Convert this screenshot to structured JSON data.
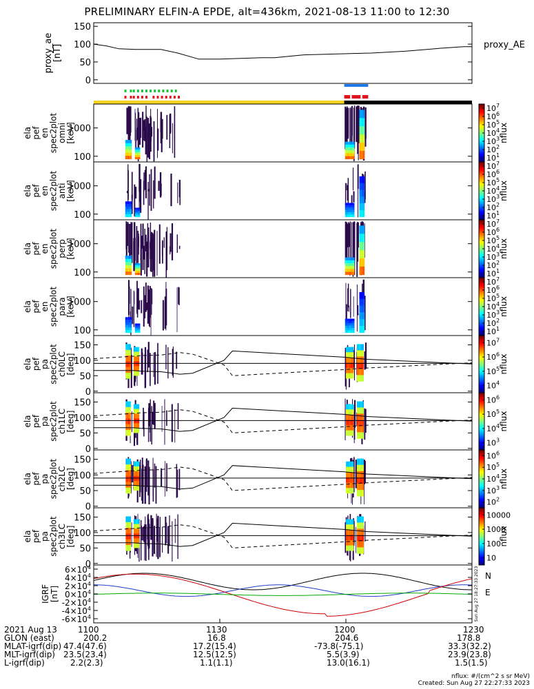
{
  "title": "PRELIMINARY ELFIN-A EPDE, alt=436km, 2021-08-13 11:00 to 12:30",
  "chart_data": [
    {
      "type": "line",
      "ylabel_lines": [
        "proxy_ae",
        "[nT]"
      ],
      "yticks": [
        "0",
        "50",
        "100",
        "150"
      ],
      "ylim": [
        -10,
        160
      ],
      "legend": "proxy_AE",
      "series": [
        {
          "name": "proxy_AE",
          "x": [
            0,
            3,
            6,
            10,
            16,
            20,
            25,
            30,
            40,
            43,
            50,
            56,
            66,
            74,
            82,
            88,
            90
          ],
          "y": [
            100,
            95,
            87,
            85,
            85,
            75,
            58,
            58,
            62,
            62,
            70,
            72,
            75,
            80,
            88,
            93,
            93
          ]
        }
      ]
    },
    {
      "type": "heatmap",
      "ylabel_lines": [
        "ela",
        "pef",
        "en",
        "spec2plot",
        "omni",
        "[keV]"
      ],
      "yticks": [
        "100",
        "1000"
      ],
      "colorbar_label": "nflux",
      "cb_ticks": [
        "10",
        "10",
        "10",
        "10",
        "10",
        "10",
        "10"
      ],
      "cb_exps": [
        "1",
        "2",
        "3",
        "4",
        "5",
        "6",
        "7"
      ]
    },
    {
      "type": "heatmap",
      "ylabel_lines": [
        "ela",
        "pef",
        "en",
        "spec2plot",
        "anti",
        "[keV]"
      ],
      "yticks": [
        "100",
        "1000"
      ],
      "colorbar_label": "nflux",
      "cb_ticks": [
        "10",
        "10",
        "10",
        "10",
        "10",
        "10",
        "10"
      ],
      "cb_exps": [
        "1",
        "2",
        "3",
        "4",
        "5",
        "6",
        "7"
      ]
    },
    {
      "type": "heatmap",
      "ylabel_lines": [
        "ela",
        "pef",
        "en",
        "spec2plot",
        "perp",
        "[keV]"
      ],
      "yticks": [
        "100",
        "1000"
      ],
      "colorbar_label": "nflux",
      "cb_ticks": [
        "10",
        "10",
        "10",
        "10",
        "10",
        "10",
        "10"
      ],
      "cb_exps": [
        "1",
        "2",
        "3",
        "4",
        "5",
        "6",
        "7"
      ]
    },
    {
      "type": "heatmap",
      "ylabel_lines": [
        "ela",
        "pef",
        "en",
        "spec2plot",
        "para",
        "[keV]"
      ],
      "yticks": [
        "100",
        "1000"
      ],
      "colorbar_label": "nflux",
      "cb_ticks": [
        "10",
        "10",
        "10",
        "10",
        "10",
        "10",
        "10"
      ],
      "cb_exps": [
        "1",
        "2",
        "3",
        "4",
        "5",
        "6",
        "7"
      ]
    },
    {
      "type": "heatmap",
      "ylabel_lines": [
        "ela",
        "pef",
        "pa",
        "spec2plot",
        "ch0LC",
        "[deg]"
      ],
      "yticks": [
        "0",
        "50",
        "100",
        "150"
      ],
      "ylim": [
        -5,
        180
      ],
      "colorbar_label": "nflux",
      "cb_ticks": [
        "10",
        "10",
        "10",
        "10"
      ],
      "cb_exps": [
        "4",
        "5",
        "6",
        "7"
      ]
    },
    {
      "type": "heatmap",
      "ylabel_lines": [
        "ela",
        "pef",
        "pa",
        "spec2plot",
        "ch1LC",
        "[deg]"
      ],
      "yticks": [
        "0",
        "50",
        "100",
        "150"
      ],
      "ylim": [
        -5,
        180
      ],
      "colorbar_label": "nflux",
      "cb_ticks": [
        "10",
        "10",
        "10",
        "10"
      ],
      "cb_exps": [
        "3",
        "4",
        "5",
        "6"
      ]
    },
    {
      "type": "heatmap",
      "ylabel_lines": [
        "ela",
        "pef",
        "pa",
        "spec2plot",
        "ch2LC",
        "[deg]"
      ],
      "yticks": [
        "0",
        "50",
        "100",
        "150"
      ],
      "ylim": [
        -5,
        180
      ],
      "colorbar_label": "nflux",
      "cb_ticks": [
        "10",
        "10",
        "10",
        "10",
        "10"
      ],
      "cb_exps": [
        "2",
        "3",
        "4",
        "5",
        "6"
      ]
    },
    {
      "type": "heatmap",
      "ylabel_lines": [
        "ela",
        "pef",
        "pa",
        "spec2plot",
        "ch3LC",
        "[deg]"
      ],
      "yticks": [
        "0",
        "50",
        "100",
        "150"
      ],
      "ylim": [
        -5,
        180
      ],
      "colorbar_label": "nflux",
      "cb_ticks": [
        "10",
        "100",
        "1000",
        "10000"
      ]
    },
    {
      "type": "line",
      "ylabel_lines": [
        "IGRF",
        "[nT]"
      ],
      "yticks": [
        "-6",
        "-4",
        "-2",
        "0",
        "2",
        "4",
        "6"
      ],
      "ytick_base": "×10",
      "ytick_exp": "4",
      "legend": [
        "N",
        "E"
      ],
      "legend_colors": [
        "#cc0000",
        "#00aa00"
      ]
    }
  ],
  "footer": {
    "row_labels": [
      "2021 Aug 13",
      "GLON (east)",
      "MLAT-igrf(dip)",
      "MLT-igrf(dip)",
      "L-igrf(dip)"
    ],
    "time_ticks": [
      "1100",
      "1130",
      "1200",
      "1230"
    ],
    "columns": [
      [
        "200.2",
        "47.4(47.6)",
        "23.5(23.4)",
        "2.2(2.3)"
      ],
      [
        "16.8",
        "17.2(15.4)",
        "12.5(12.5)",
        "1.1(1.1)"
      ],
      [
        "204.6",
        "-73.8(-75.1)",
        "5.5(3.9)",
        "13.0(16.1)"
      ],
      [
        "178.8",
        "33.3(32.2)",
        "23.9(23.8)",
        "1.5(1.5)"
      ]
    ],
    "units_note": "nflux: #/(cm^2 s sr MeV)",
    "created": "Created: Sun Aug 27 22:27:33 2023",
    "side_note": "Sun Aug 27 18:27:33 2023"
  },
  "colors": {
    "state_bar_yellow": "#f7d21e",
    "state_bar_black": "#000000",
    "science_green": "#19c43a",
    "science_red": "#e0141a",
    "science_blue": "#1e78e6"
  }
}
